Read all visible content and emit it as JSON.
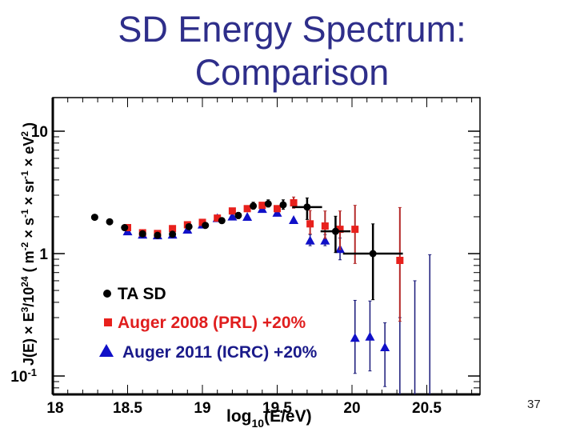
{
  "slide": {
    "title_line1": "SD Energy Spectrum:",
    "title_line2": "Comparison",
    "title_color": "#2e2e8a",
    "slide_number": "37"
  },
  "chart_data": {
    "type": "scatter",
    "title": "SD Energy Spectrum: Comparison",
    "xlabel": "log10(E/eV)",
    "xlabel_main": "log",
    "xlabel_sub": "10",
    "xlabel_tail": "(E/eV)",
    "ylabel": "J(E) × E^3/10^24 ( m^-2 × s^-1 × sr^-1 × eV^2 )",
    "xlim": [
      18.0,
      20.85
    ],
    "ylim": [
      0.065,
      20
    ],
    "yscale": "log",
    "grid": false,
    "x_ticks": [
      18,
      18.5,
      19,
      19.5,
      20,
      20.5
    ],
    "x_tick_labels": [
      "18",
      "18.5",
      "19",
      "19.5",
      "20",
      "20.5"
    ],
    "y_ticks": [
      0.1,
      1,
      10
    ],
    "y_tick_labels": [
      "10",
      "1",
      "10"
    ],
    "y_tick_exponents": [
      "-1",
      "",
      ""
    ],
    "legend_position": "bottom-left",
    "series": [
      {
        "name": "TA SD",
        "marker": "circle",
        "color": "#000000",
        "points": [
          {
            "x": 18.28,
            "y": 1.98
          },
          {
            "x": 18.38,
            "y": 1.82
          },
          {
            "x": 18.48,
            "y": 1.63
          },
          {
            "x": 18.6,
            "y": 1.45
          },
          {
            "x": 18.7,
            "y": 1.41
          },
          {
            "x": 18.8,
            "y": 1.44
          },
          {
            "x": 18.91,
            "y": 1.66
          },
          {
            "x": 19.02,
            "y": 1.7
          },
          {
            "x": 19.13,
            "y": 1.86
          },
          {
            "x": 19.24,
            "y": 2.05,
            "yerr_lo": 0.12,
            "yerr_hi": 0.12
          },
          {
            "x": 19.34,
            "y": 2.45,
            "yerr_lo": 0.15,
            "yerr_hi": 0.18
          },
          {
            "x": 19.44,
            "y": 2.55,
            "yerr_lo": 0.15,
            "yerr_hi": 0.2
          },
          {
            "x": 19.54,
            "y": 2.5,
            "yerr_lo": 0.2,
            "yerr_hi": 0.25
          },
          {
            "x": 19.7,
            "y": 2.4,
            "xerr": 0.1,
            "yerr_lo": 0.5,
            "yerr_hi": 0.45
          },
          {
            "x": 19.89,
            "y": 1.52,
            "xerr": 0.1,
            "yerr_lo": 0.5,
            "yerr_hi": 0.5
          },
          {
            "x": 20.14,
            "y": 1.0,
            "xerr": 0.2,
            "yerr_lo": 0.58,
            "yerr_hi": 0.75
          }
        ]
      },
      {
        "name": "Auger 2008 (PRL) +20%",
        "marker": "square",
        "color": "#e8201c",
        "errcolor": "#b42a2a",
        "points": [
          {
            "x": 18.5,
            "y": 1.63
          },
          {
            "x": 18.6,
            "y": 1.48
          },
          {
            "x": 18.7,
            "y": 1.46
          },
          {
            "x": 18.8,
            "y": 1.6
          },
          {
            "x": 18.9,
            "y": 1.72
          },
          {
            "x": 19.0,
            "y": 1.8
          },
          {
            "x": 19.1,
            "y": 1.95
          },
          {
            "x": 19.2,
            "y": 2.23
          },
          {
            "x": 19.3,
            "y": 2.33
          },
          {
            "x": 19.4,
            "y": 2.48
          },
          {
            "x": 19.5,
            "y": 2.33
          },
          {
            "x": 19.61,
            "y": 2.6,
            "yerr_lo": 0.25,
            "yerr_hi": 0.3
          },
          {
            "x": 19.72,
            "y": 1.75,
            "yerr_lo": 0.3,
            "yerr_hi": 0.5
          },
          {
            "x": 19.82,
            "y": 1.68,
            "yerr_lo": 0.35,
            "yerr_hi": 0.55
          },
          {
            "x": 19.92,
            "y": 1.58,
            "yerr_lo": 0.5,
            "yerr_hi": 0.65
          },
          {
            "x": 20.02,
            "y": 1.58,
            "yerr_lo": 0.75,
            "yerr_hi": 0.9
          },
          {
            "x": 20.32,
            "y": 0.88,
            "yerr_lo": 0.6,
            "yerr_hi": 1.5
          }
        ]
      },
      {
        "name": "Auger 2011 (ICRC) +20%",
        "marker": "triangle",
        "color": "#1010c8",
        "errcolor": "#1a1a7a",
        "points": [
          {
            "x": 18.5,
            "y": 1.52
          },
          {
            "x": 18.6,
            "y": 1.43
          },
          {
            "x": 18.7,
            "y": 1.41
          },
          {
            "x": 18.8,
            "y": 1.43
          },
          {
            "x": 18.9,
            "y": 1.57
          },
          {
            "x": 19.0,
            "y": 1.73
          },
          {
            "x": 19.1,
            "y": 1.95
          },
          {
            "x": 19.2,
            "y": 2.01
          },
          {
            "x": 19.3,
            "y": 2.0
          },
          {
            "x": 19.4,
            "y": 2.32
          },
          {
            "x": 19.5,
            "y": 2.16
          },
          {
            "x": 19.61,
            "y": 1.88
          },
          {
            "x": 19.72,
            "y": 1.28,
            "yerr_lo": 0.12,
            "yerr_hi": 0.15
          },
          {
            "x": 19.82,
            "y": 1.28,
            "yerr_lo": 0.12,
            "yerr_hi": 0.15
          },
          {
            "x": 19.92,
            "y": 1.09,
            "yerr_lo": 0.2,
            "yerr_hi": 0.25
          },
          {
            "x": 20.02,
            "y": 0.205,
            "yerr_lo": 0.1,
            "yerr_hi": 0.21
          },
          {
            "x": 20.12,
            "y": 0.21,
            "yerr_lo": 0.1,
            "yerr_hi": 0.2
          },
          {
            "x": 20.22,
            "y": 0.172,
            "yerr_lo": 0.09,
            "yerr_hi": 0.1
          },
          {
            "x": 20.32,
            "y": null,
            "upper_err_only": 0.3
          },
          {
            "x": 20.42,
            "y": null,
            "upper_err_only": 0.6
          },
          {
            "x": 20.52,
            "y": null,
            "upper_err_only": 0.98
          }
        ]
      }
    ]
  }
}
